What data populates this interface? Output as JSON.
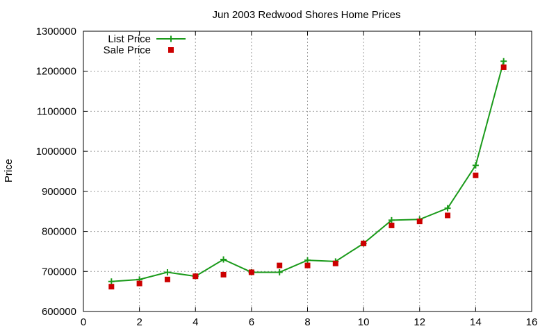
{
  "chart_data": {
    "type": "line",
    "title": "Jun 2003 Redwood Shores Home Prices",
    "xlabel": "",
    "ylabel": "Price",
    "xlim": [
      0,
      16
    ],
    "ylim": [
      600000,
      1300000
    ],
    "x_ticks": [
      0,
      2,
      4,
      6,
      8,
      10,
      12,
      14,
      16
    ],
    "y_ticks": [
      600000,
      700000,
      800000,
      900000,
      1000000,
      1100000,
      1200000,
      1300000
    ],
    "grid": true,
    "legend_position": "top-left",
    "x": [
      1,
      2,
      3,
      4,
      5,
      6,
      7,
      8,
      9,
      10,
      11,
      12,
      13,
      14,
      15
    ],
    "series": [
      {
        "name": "List Price",
        "style": "lines+points",
        "marker": "plus",
        "color": "#1a9a1a",
        "values": [
          675000,
          680000,
          698000,
          688000,
          730000,
          698000,
          698000,
          728000,
          725000,
          770000,
          828000,
          830000,
          858000,
          965000,
          1225000
        ]
      },
      {
        "name": "Sale Price",
        "style": "points",
        "marker": "square",
        "color": "#cc0000",
        "values": [
          662000,
          670000,
          680000,
          688000,
          692000,
          698000,
          715000,
          715000,
          720000,
          770000,
          815000,
          825000,
          840000,
          940000,
          1210000
        ]
      }
    ]
  }
}
